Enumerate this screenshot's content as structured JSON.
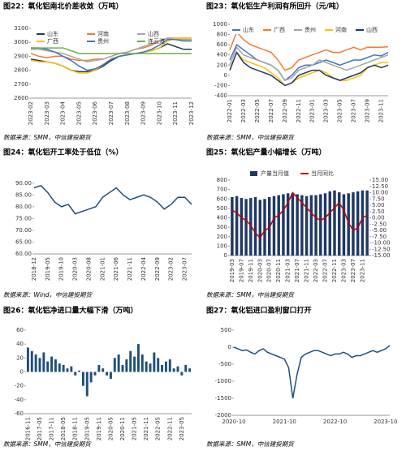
{
  "chart_data": [
    {
      "type": "line",
      "title": "图22：氧化铝南北价差收敛（万吨）",
      "source": "数据来源：SMM，中信建投期货",
      "categories": [
        "2023-02",
        null,
        "2023-03",
        null,
        "2023-04",
        null,
        "2023-05",
        null,
        "2023-06",
        null,
        "2023-07",
        null,
        "2023-08",
        null,
        "2023-09",
        null,
        "2023-10",
        null,
        "2023-11",
        null,
        "2023-12"
      ],
      "series": [
        {
          "name": "山东",
          "color": "#1f3864",
          "values": [
            2880,
            2870,
            2860,
            2850,
            2830,
            2800,
            2790,
            2790,
            2800,
            2830,
            2870,
            2900,
            2910,
            2920,
            2930,
            2940,
            2960,
            2990,
            2970,
            2950,
            2950
          ]
        },
        {
          "name": "河南",
          "color": "#ed7d31",
          "values": [
            2920,
            2900,
            2890,
            2900,
            2900,
            2880,
            2870,
            2870,
            2880,
            2880,
            2900,
            2920,
            2930,
            2950,
            2960,
            2980,
            3010,
            3030,
            3030,
            3030,
            3030
          ]
        },
        {
          "name": "山西",
          "color": "#a5a5a5",
          "values": [
            2950,
            2950,
            2940,
            2930,
            2920,
            2900,
            2880,
            2860,
            2870,
            2880,
            2900,
            2920,
            2930,
            2950,
            2970,
            2990,
            3010,
            3030,
            3020,
            3020,
            3020
          ]
        },
        {
          "name": "广西",
          "color": "#ffc000",
          "values": [
            2870,
            2860,
            2860,
            2850,
            2830,
            2800,
            2780,
            2780,
            2800,
            2840,
            2880,
            2900,
            2910,
            2920,
            2930,
            2940,
            2960,
            3010,
            3030,
            3030,
            3030
          ]
        },
        {
          "name": "贵州",
          "color": "#4472c4",
          "values": [
            2960,
            2960,
            2950,
            2930,
            2900,
            2870,
            2830,
            2800,
            2810,
            2840,
            2880,
            2900,
            2910,
            2920,
            2930,
            2950,
            2980,
            3020,
            3020,
            3010,
            3010
          ]
        },
        {
          "name": "连云港",
          "color": "#70ad47",
          "values": [
            2960,
            2960,
            2960,
            2960,
            2960,
            2940,
            2920,
            2920,
            2920,
            2920,
            2920,
            2920,
            2920,
            2920,
            2920,
            2920,
            2920,
            2920,
            2920,
            2920,
            2920
          ]
        }
      ],
      "ylim": [
        2600,
        3100
      ],
      "yticks": [
        2600,
        2700,
        2800,
        2900,
        3000,
        3100
      ],
      "grid": false,
      "legend": "top"
    },
    {
      "type": "line",
      "title": "图23：氧化铝生产利润有所回升（元/吨）",
      "source": "数据来源：SMM，中信建投期货",
      "categories": [
        "2022-01",
        null,
        "2022-03",
        null,
        "2022-05",
        null,
        "2022-07",
        null,
        "2022-09",
        null,
        "2022-11",
        null,
        "2023-01",
        null,
        "2023-03",
        null,
        "2023-05",
        null,
        "2023-07",
        null,
        "2023-09",
        null,
        "2023-11",
        null
      ],
      "series": [
        {
          "name": "山东",
          "color": "#4472c4",
          "values": [
            300,
            600,
            500,
            400,
            300,
            250,
            200,
            100,
            -100,
            0,
            150,
            200,
            200,
            250,
            300,
            250,
            200,
            250,
            300,
            300,
            350,
            400,
            380,
            450
          ]
        },
        {
          "name": "广西",
          "color": "#ed7d31",
          "values": [
            500,
            850,
            700,
            600,
            550,
            500,
            450,
            300,
            100,
            150,
            300,
            350,
            400,
            450,
            500,
            450,
            450,
            500,
            550,
            500,
            550,
            550,
            550,
            560
          ]
        },
        {
          "name": "贵州",
          "color": "#a5a5a5",
          "values": [
            200,
            550,
            400,
            350,
            300,
            250,
            200,
            100,
            -100,
            -50,
            100,
            150,
            200,
            300,
            250,
            200,
            150,
            100,
            150,
            200,
            250,
            300,
            350,
            400
          ]
        },
        {
          "name": "河南",
          "color": "#ffc000",
          "values": [
            100,
            450,
            300,
            250,
            200,
            150,
            50,
            -50,
            -200,
            -150,
            -50,
            0,
            50,
            100,
            50,
            -50,
            -100,
            -100,
            -50,
            0,
            150,
            200,
            250,
            250
          ]
        },
        {
          "name": "山西",
          "color": "#1f3864",
          "values": [
            100,
            450,
            250,
            150,
            100,
            50,
            0,
            -100,
            -200,
            -150,
            0,
            50,
            100,
            100,
            0,
            -50,
            -100,
            -50,
            0,
            50,
            150,
            200,
            150,
            200
          ]
        }
      ],
      "ylim": [
        -400,
        1000
      ],
      "yticks": [
        -400,
        -200,
        0,
        200,
        400,
        600,
        800,
        1000
      ],
      "grid": false,
      "legend": "top"
    },
    {
      "type": "line",
      "title": "图24：氧化铝开工率处于低位（%）",
      "source": "数据来源：Wind，中信建投期货",
      "categories": [
        "2018-12",
        null,
        "2019-05",
        null,
        "2019-10",
        null,
        "2020-03",
        null,
        "2020-08",
        null,
        "2021-01",
        null,
        "2021-06",
        null,
        "2021-11",
        null,
        "2022-04",
        null,
        "2022-09",
        null,
        "2023-02",
        null,
        "2023-07",
        null
      ],
      "series": [
        {
          "color": "#1f4e79",
          "values": [
            88,
            89,
            86,
            82,
            80,
            81,
            77,
            78,
            79,
            80,
            84,
            86,
            88,
            85,
            83,
            84,
            85,
            84,
            82,
            79,
            81,
            84,
            84,
            81
          ]
        }
      ],
      "ylim": [
        60,
        92
      ],
      "yticks": [
        {
          "value": 60,
          "label": "60.00"
        },
        {
          "value": 65,
          "label": "65.00"
        },
        {
          "value": 70,
          "label": "70.00"
        },
        {
          "value": 75,
          "label": "75.00"
        },
        {
          "value": 80,
          "label": "80.00"
        },
        {
          "value": 85,
          "label": "85.00"
        },
        {
          "value": 90,
          "label": "90.00"
        }
      ],
      "grid": false
    },
    {
      "type": "combo",
      "title": "图25：氧化铝产量小幅增长（万吨）",
      "source": "数据来源：SMM，中信建投期货",
      "categories": [
        "2019-03",
        null,
        "2019-07",
        null,
        "2019-11",
        null,
        "2020-03",
        null,
        "2020-07",
        null,
        "2020-11",
        null,
        "2021-03",
        null,
        "2021-07",
        null,
        "2021-11",
        null,
        "2022-03",
        null,
        "2022-07",
        null,
        "2022-11",
        null,
        "2023-03",
        null,
        "2023-07",
        null,
        "2023-11",
        null
      ],
      "series": [
        {
          "name": "产量当月值",
          "type": "bar",
          "color": "#1f3864",
          "values": [
            620,
            630,
            610,
            600,
            610,
            620,
            590,
            600,
            620,
            630,
            640,
            650,
            660,
            660,
            650,
            640,
            630,
            640,
            640,
            650,
            660,
            680,
            690,
            670,
            650,
            660,
            670,
            680,
            690,
            690
          ]
        },
        {
          "name": "当月同比",
          "type": "line",
          "axis": "y2",
          "color": "#c00000",
          "values": [
            3,
            2,
            0,
            -1,
            -3,
            -6,
            -8,
            -5,
            -4,
            0,
            1,
            3,
            6,
            10,
            8,
            6,
            4,
            2,
            0,
            -1,
            0,
            2,
            4,
            6,
            3,
            -2,
            -5,
            -4,
            0,
            1
          ]
        }
      ],
      "ylim": [
        0,
        800
      ],
      "yticks": [
        0,
        100,
        200,
        300,
        400,
        500,
        600,
        700,
        800
      ],
      "y2lim": [
        -15,
        15
      ],
      "y2ticks": [
        {
          "value": -15,
          "label": "-15.00"
        },
        {
          "value": -12.5,
          "label": "-12.50"
        },
        {
          "value": -10,
          "label": "-10.00"
        },
        {
          "value": -7.5,
          "label": "-7.50"
        },
        {
          "value": -5,
          "label": "-5.00"
        },
        {
          "value": -2.5,
          "label": "-2.50"
        },
        {
          "value": 0,
          "label": "0.00"
        },
        {
          "value": 2.5,
          "label": "2.50"
        },
        {
          "value": 5,
          "label": "5.00"
        },
        {
          "value": 7.5,
          "label": "7.50"
        },
        {
          "value": 10,
          "label": "10.00"
        },
        {
          "value": 12.5,
          "label": "12.50"
        },
        {
          "value": 15,
          "label": "15.00"
        }
      ],
      "grid": false,
      "legend": "top"
    },
    {
      "type": "bar",
      "title": "图26：氧化铝净进口量大幅下滑（万吨）",
      "source": "数据来源：SMM，中信建投期货",
      "categories": [
        "2016-11",
        null,
        null,
        "2017-05",
        null,
        null,
        "2017-11",
        null,
        null,
        "2018-05",
        null,
        null,
        "2018-11",
        null,
        null,
        "2019-05",
        null,
        null,
        "2019-11",
        null,
        null,
        "2020-05",
        null,
        null,
        "2020-11",
        null,
        null,
        "2021-05",
        null,
        null,
        "2021-11",
        null,
        null,
        "2022-05",
        null,
        null,
        "2022-11",
        null,
        null,
        "2023-05",
        null,
        null
      ],
      "color": "#1f4e79",
      "values": [
        35,
        30,
        25,
        20,
        28,
        15,
        22,
        18,
        12,
        10,
        5,
        8,
        -5,
        2,
        -20,
        -35,
        -15,
        -5,
        10,
        5,
        -5,
        -10,
        20,
        25,
        10,
        18,
        30,
        22,
        40,
        25,
        15,
        12,
        28,
        20,
        10,
        15,
        18,
        5,
        8,
        -5,
        10,
        5
      ],
      "ylim": [
        -60,
        60
      ],
      "yticks": [
        -60,
        -40,
        -20,
        0,
        20,
        40,
        60
      ],
      "grid": false
    },
    {
      "type": "line",
      "title": "图27：氧化铝进口盈利窗口打开",
      "source": "数据来源：SMM，中信建投期货",
      "categories": [
        "2020-10",
        null,
        null,
        null,
        null,
        null,
        null,
        null,
        null,
        null,
        null,
        null,
        "2021-10",
        null,
        null,
        null,
        null,
        null,
        null,
        null,
        null,
        null,
        null,
        null,
        "2022-10",
        null,
        null,
        null,
        null,
        null,
        null,
        null,
        null,
        null,
        null,
        null,
        "2023-10",
        null
      ],
      "series": [
        {
          "color": "#1f4e79",
          "values": [
            0,
            -50,
            -100,
            -80,
            -150,
            -200,
            -100,
            -50,
            -150,
            -200,
            -250,
            -300,
            -350,
            -600,
            -1500,
            -800,
            -300,
            -200,
            -150,
            -100,
            -100,
            -150,
            -200,
            -250,
            -200,
            -200,
            -150,
            -200,
            -300,
            -250,
            -250,
            -200,
            -150,
            -100,
            -150,
            -100,
            -50,
            50
          ]
        }
      ],
      "ylim": [
        -2000,
        500
      ],
      "yticks": [
        -2000,
        -1500,
        -1000,
        -500,
        0,
        500
      ],
      "grid": false
    }
  ]
}
